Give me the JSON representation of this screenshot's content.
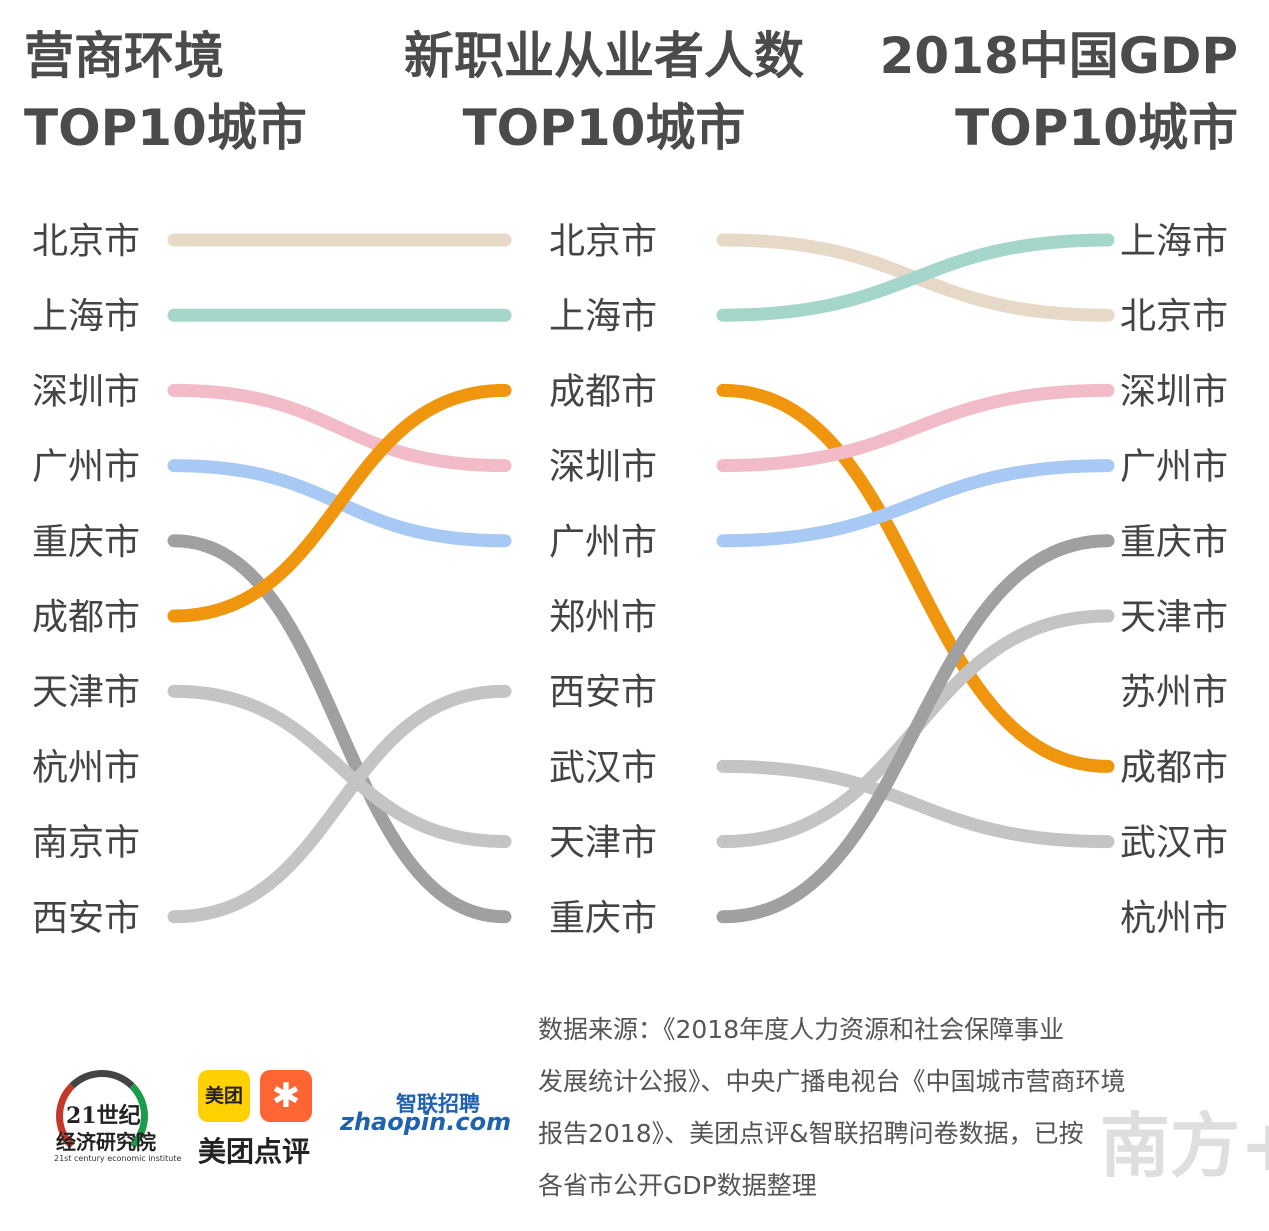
{
  "titles": {
    "left": [
      "营商环境",
      "TOP10城市"
    ],
    "mid": [
      "新职业从业者人数",
      "TOP10城市"
    ],
    "right": [
      "2018中国GDP",
      "TOP10城市"
    ]
  },
  "chart_data": {
    "type": "bump",
    "columns": [
      {
        "title": "营商环境TOP10城市",
        "ranking": [
          "北京市",
          "上海市",
          "深圳市",
          "广州市",
          "重庆市",
          "成都市",
          "天津市",
          "杭州市",
          "南京市",
          "西安市"
        ]
      },
      {
        "title": "新职业从业者人数TOP10城市",
        "ranking": [
          "北京市",
          "上海市",
          "成都市",
          "深圳市",
          "广州市",
          "郑州市",
          "西安市",
          "武汉市",
          "天津市",
          "重庆市"
        ]
      },
      {
        "title": "2018中国GDP TOP10城市",
        "ranking": [
          "上海市",
          "北京市",
          "深圳市",
          "广州市",
          "重庆市",
          "天津市",
          "苏州市",
          "成都市",
          "武汉市",
          "杭州市"
        ]
      }
    ],
    "links_left_to_mid": [
      {
        "city": "北京市",
        "from": 1,
        "to": 1,
        "color": "#e6d9c8"
      },
      {
        "city": "上海市",
        "from": 2,
        "to": 2,
        "color": "#a5d6cb"
      },
      {
        "city": "深圳市",
        "from": 3,
        "to": 4,
        "color": "#f1bcc8"
      },
      {
        "city": "广州市",
        "from": 4,
        "to": 5,
        "color": "#a8c9f3"
      },
      {
        "city": "重庆市",
        "from": 5,
        "to": 10,
        "color": "#a0a0a0"
      },
      {
        "city": "成都市",
        "from": 6,
        "to": 3,
        "color": "#f0960e"
      },
      {
        "city": "天津市",
        "from": 7,
        "to": 9,
        "color": "#c4c4c4"
      },
      {
        "city": "西安市",
        "from": 10,
        "to": 7,
        "color": "#c4c4c4"
      }
    ],
    "links_mid_to_right": [
      {
        "city": "北京市",
        "from": 1,
        "to": 2,
        "color": "#e6d9c8"
      },
      {
        "city": "上海市",
        "from": 2,
        "to": 1,
        "color": "#a5d6cb"
      },
      {
        "city": "成都市",
        "from": 3,
        "to": 8,
        "color": "#f0960e"
      },
      {
        "city": "深圳市",
        "from": 4,
        "to": 3,
        "color": "#f1bcc8"
      },
      {
        "city": "广州市",
        "from": 5,
        "to": 4,
        "color": "#a8c9f3"
      },
      {
        "city": "武汉市",
        "from": 8,
        "to": 9,
        "color": "#c4c4c4"
      },
      {
        "city": "天津市",
        "from": 9,
        "to": 6,
        "color": "#c4c4c4"
      },
      {
        "city": "重庆市",
        "from": 10,
        "to": 5,
        "color": "#a0a0a0"
      }
    ]
  },
  "source": [
    "数据来源：《2018年度人力资源和社会保障事业",
    "发展统计公报》、中央广播电视台《中国城市营商环境",
    "报告2018》、美团点评&智联招聘问卷数据，已按",
    "各省市公开GDP数据整理"
  ],
  "logos": {
    "century21": {
      "line1": "21世纪",
      "line2": "经济研究院",
      "line3": "21st century economic institute"
    },
    "meituan": {
      "badge1": "美团",
      "badge2": "✱",
      "name": "美团点评"
    },
    "zhaopin": {
      "cn": "智联招聘",
      "en": "zhaopin.com"
    },
    "watermark": "南方+"
  }
}
